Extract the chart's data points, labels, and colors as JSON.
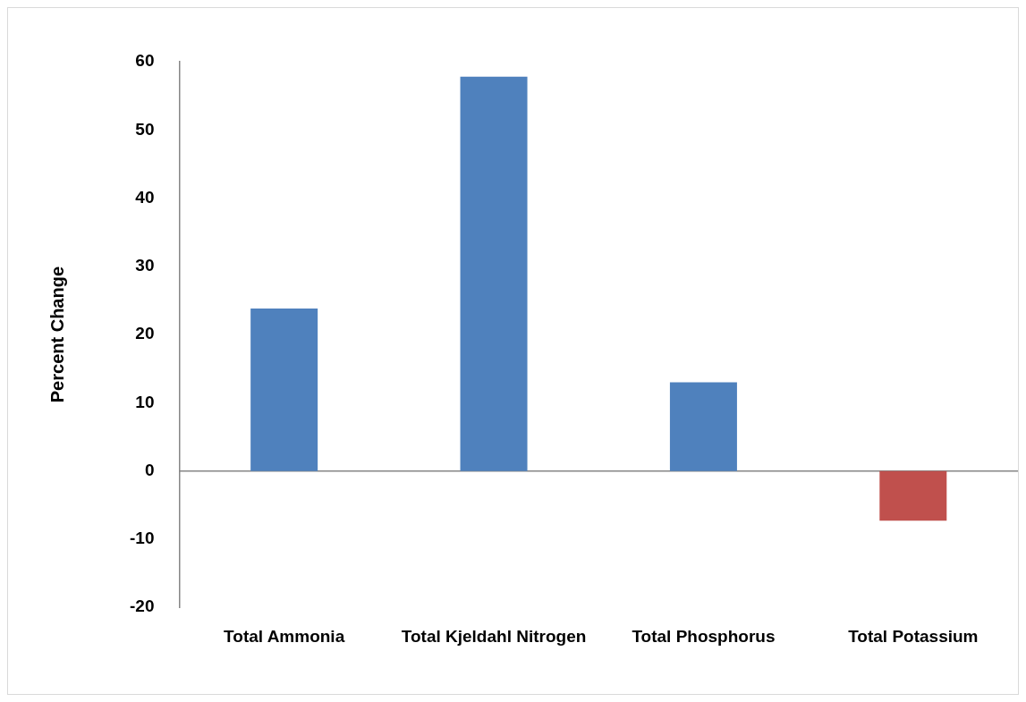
{
  "chart_data": {
    "type": "bar",
    "ylabel": "Percent Change",
    "categories": [
      "Total Ammonia",
      "Total Kjeldahl Nitrogen",
      "Total Phosphorus",
      "Total Potassium"
    ],
    "values": [
      23.8,
      57.8,
      13.0,
      -7.3
    ],
    "colors": [
      "#4f81bd",
      "#4f81bd",
      "#4f81bd",
      "#c0504d"
    ],
    "ylim": [
      -20,
      60
    ],
    "yticks": [
      -20,
      -10,
      0,
      10,
      20,
      30,
      40,
      50,
      60
    ],
    "legend": false
  }
}
